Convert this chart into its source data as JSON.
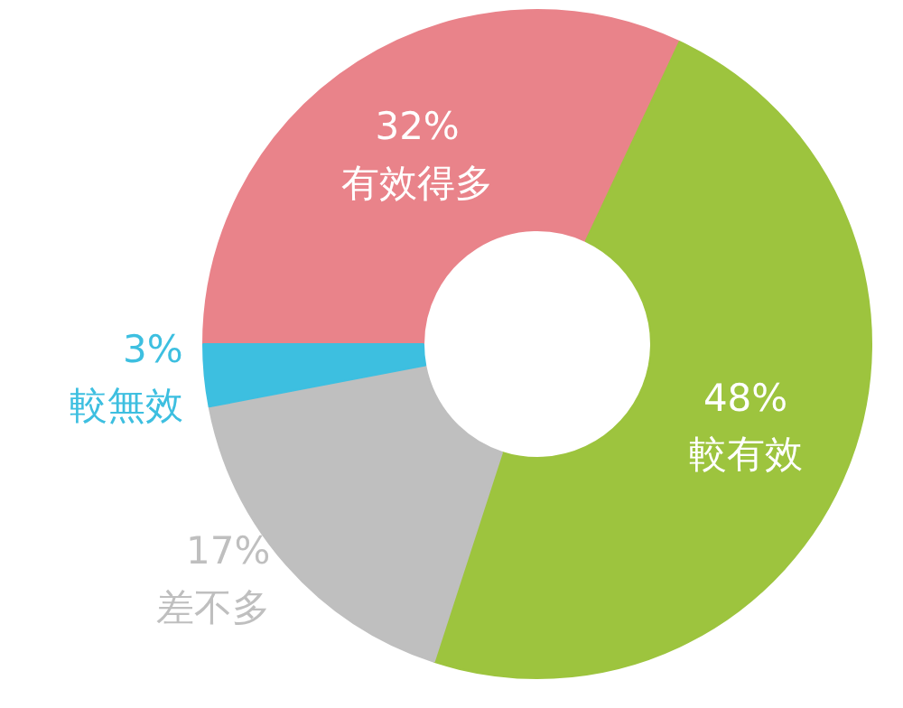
{
  "chart_data": {
    "type": "donut",
    "categories": [
      "有效得多",
      "較有效",
      "差不多",
      "較無效"
    ],
    "values": [
      32,
      48,
      17,
      3
    ],
    "value_labels": [
      "32%",
      "48%",
      "17%",
      "3%"
    ],
    "colors": [
      "#e9838a",
      "#9dc43e",
      "#bfbfbf",
      "#3dbfe0"
    ]
  }
}
